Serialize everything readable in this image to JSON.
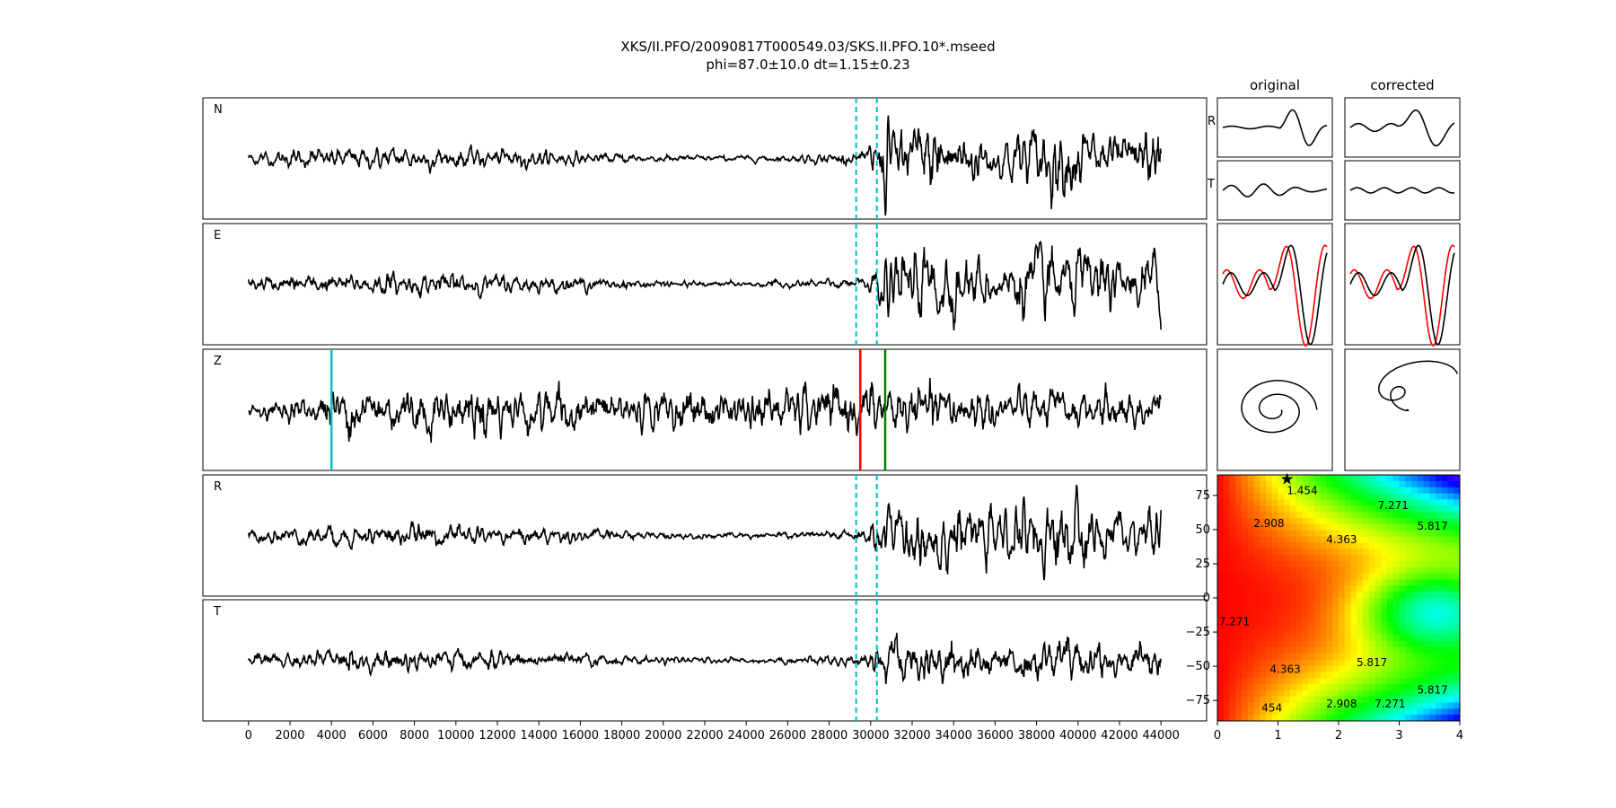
{
  "title": {
    "line1": "XKS/II.PFO/20090817T000549.03/SKS.II.PFO.10*.mseed",
    "line2": "phi=87.0±10.0 dt=1.15±0.23"
  },
  "colors": {
    "trace": "#000000",
    "window_marker": "#00bfbf",
    "red_marker": "#ff0000",
    "green_marker": "#008000",
    "corrected_red": "#ff0000"
  },
  "chart_data": [
    {
      "type": "line",
      "description_key": "seismogram traces",
      "panels": [
        {
          "label": "N",
          "markers": [
            {
              "x": 29300,
              "style": "dashed",
              "color": "#00bfbf"
            },
            {
              "x": 30300,
              "style": "dashed",
              "color": "#00bfbf"
            }
          ]
        },
        {
          "label": "E",
          "markers": [
            {
              "x": 29300,
              "style": "dashed",
              "color": "#00bfbf"
            },
            {
              "x": 30300,
              "style": "dashed",
              "color": "#00bfbf"
            }
          ]
        },
        {
          "label": "Z",
          "markers": [
            {
              "x": 4000,
              "style": "solid",
              "color": "#00bfbf"
            },
            {
              "x": 29500,
              "style": "solid",
              "color": "#ff0000"
            },
            {
              "x": 30700,
              "style": "solid",
              "color": "#008000"
            }
          ]
        },
        {
          "label": "R",
          "markers": [
            {
              "x": 29300,
              "style": "dashed",
              "color": "#00bfbf"
            },
            {
              "x": 30300,
              "style": "dashed",
              "color": "#00bfbf"
            }
          ]
        },
        {
          "label": "T",
          "markers": [
            {
              "x": 29300,
              "style": "dashed",
              "color": "#00bfbf"
            },
            {
              "x": 30300,
              "style": "dashed",
              "color": "#00bfbf"
            }
          ]
        }
      ],
      "xlim": [
        -2200,
        46200
      ],
      "xticks": [
        0,
        2000,
        4000,
        6000,
        8000,
        10000,
        12000,
        14000,
        16000,
        18000,
        20000,
        22000,
        24000,
        26000,
        28000,
        30000,
        32000,
        34000,
        36000,
        38000,
        40000,
        42000,
        44000
      ],
      "xtick_labels": [
        "0",
        "2000",
        "4000",
        "6000",
        "8000",
        "10000",
        "12000",
        "14000",
        "16000",
        "18000",
        "20000",
        "22000",
        "24000",
        "26000",
        "28000",
        "30000",
        "32000",
        "34000",
        "36000",
        "38000",
        "40000",
        "42000",
        "44000"
      ],
      "data_range": [
        0,
        44000
      ]
    },
    {
      "type": "line",
      "description_key": "waveform comparison",
      "columns": [
        "original",
        "corrected"
      ],
      "rows": [
        "R",
        "T"
      ]
    },
    {
      "type": "heatmap",
      "description_key": "misfit grid",
      "xlim": [
        0,
        4
      ],
      "ylim": [
        -90,
        90
      ],
      "xticks": [
        0,
        1,
        2,
        3,
        4
      ],
      "xtick_labels": [
        "0",
        "1",
        "2",
        "3",
        "4"
      ],
      "yticks": [
        75,
        50,
        25,
        0,
        -25,
        -50,
        -75
      ],
      "ytick_labels": [
        "75",
        "50",
        "25",
        "0",
        "−25",
        "−50",
        "−75"
      ],
      "best_fit": {
        "x": 1.15,
        "y": 87
      },
      "contour_labels": [
        {
          "text": "1.454",
          "x": 1.4,
          "y": 76
        },
        {
          "text": "2.908",
          "x": 0.85,
          "y": 52
        },
        {
          "text": "4.363",
          "x": 2.05,
          "y": 40
        },
        {
          "text": "7.271",
          "x": 2.9,
          "y": 65
        },
        {
          "text": "5.817",
          "x": 3.55,
          "y": 50
        },
        {
          "text": "7.271",
          "x": 0.28,
          "y": -20
        },
        {
          "text": "5.817",
          "x": 2.55,
          "y": -50
        },
        {
          "text": "4.363",
          "x": 1.12,
          "y": -55
        },
        {
          "text": "454",
          "x": 0.9,
          "y": -83
        },
        {
          "text": "2.908",
          "x": 2.05,
          "y": -80
        },
        {
          "text": "7.271",
          "x": 2.85,
          "y": -80
        },
        {
          "text": "5.817",
          "x": 3.55,
          "y": -70
        }
      ]
    }
  ]
}
